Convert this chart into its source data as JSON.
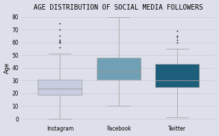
{
  "title": "AGE DISTRIBUTION OF SOCIAL MEDIA FOLLOWERS",
  "ylabel": "Age",
  "categories": [
    "Instagram",
    "Facebook",
    "Twitter"
  ],
  "background_color": "#dde0ea",
  "fig_facecolor": "#dde0ea",
  "box_colors": [
    "#c8cce0",
    "#6fa0b5",
    "#1d5f7a"
  ],
  "box_edge_color": "#aaaaaa",
  "whisker_color": "#aaaaaa",
  "median_color": "#999999",
  "flier_color": "#222222",
  "instagram": {
    "med": 24,
    "q1": 19,
    "q3": 31,
    "whislo": 0,
    "whishi": 51,
    "fliers": [
      56,
      60,
      60,
      61,
      62,
      65,
      70,
      75
    ]
  },
  "facebook": {
    "med": 37,
    "q1": 31,
    "q3": 48,
    "whislo": 10,
    "whishi": 80,
    "fliers": []
  },
  "twitter": {
    "med": 30,
    "q1": 25,
    "q3": 43,
    "whislo": 1,
    "whishi": 55,
    "fliers": [
      60,
      62,
      64,
      65,
      69
    ]
  },
  "ylim": [
    -3,
    83
  ],
  "yticks": [
    0,
    10,
    20,
    30,
    40,
    50,
    60,
    70,
    80
  ],
  "xlim": [
    0.35,
    3.65
  ],
  "box_width": 0.75,
  "title_fontsize": 7.0,
  "label_fontsize": 6.0,
  "tick_fontsize": 5.5,
  "grid_color": "#c8ccd8",
  "linewidth": 0.7
}
